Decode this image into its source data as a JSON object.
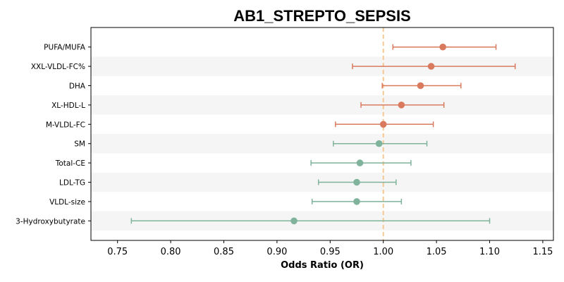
{
  "chart_data": {
    "type": "forest",
    "title": "AB1_STREPTO_SEPSIS",
    "xlabel": "Odds Ratio (OR)",
    "xlim": [
      0.725,
      1.16
    ],
    "xticks": [
      0.75,
      0.8,
      0.85,
      0.9,
      0.95,
      1.0,
      1.05,
      1.1,
      1.15
    ],
    "xtick_labels": [
      "0.75",
      "0.80",
      "0.85",
      "0.90",
      "0.95",
      "1.00",
      "1.05",
      "1.10",
      "1.15"
    ],
    "reference_line": 1.0,
    "colors": {
      "positive": "#d97a5e",
      "negative": "#7fb39c",
      "reference": "#f5c48a",
      "band": "#f5f5f5"
    },
    "rows": [
      {
        "label": "PUFA/MUFA",
        "or": 1.056,
        "lower": 1.009,
        "upper": 1.106,
        "group": "positive"
      },
      {
        "label": "XXL-VLDL-FC%",
        "or": 1.045,
        "lower": 0.971,
        "upper": 1.124,
        "group": "positive"
      },
      {
        "label": "DHA",
        "or": 1.035,
        "lower": 0.999,
        "upper": 1.073,
        "group": "positive"
      },
      {
        "label": "XL-HDL-L",
        "or": 1.017,
        "lower": 0.979,
        "upper": 1.057,
        "group": "positive"
      },
      {
        "label": "M-VLDL-FC",
        "or": 1.0,
        "lower": 0.955,
        "upper": 1.047,
        "group": "positive"
      },
      {
        "label": "SM",
        "or": 0.996,
        "lower": 0.953,
        "upper": 1.041,
        "group": "negative"
      },
      {
        "label": "Total-CE",
        "or": 0.978,
        "lower": 0.932,
        "upper": 1.026,
        "group": "negative"
      },
      {
        "label": "LDL-TG",
        "or": 0.975,
        "lower": 0.939,
        "upper": 1.012,
        "group": "negative"
      },
      {
        "label": "VLDL-size",
        "or": 0.975,
        "lower": 0.933,
        "upper": 1.017,
        "group": "negative"
      },
      {
        "label": "3-Hydroxybutyrate",
        "or": 0.916,
        "lower": 0.763,
        "upper": 1.1,
        "group": "negative"
      }
    ]
  }
}
